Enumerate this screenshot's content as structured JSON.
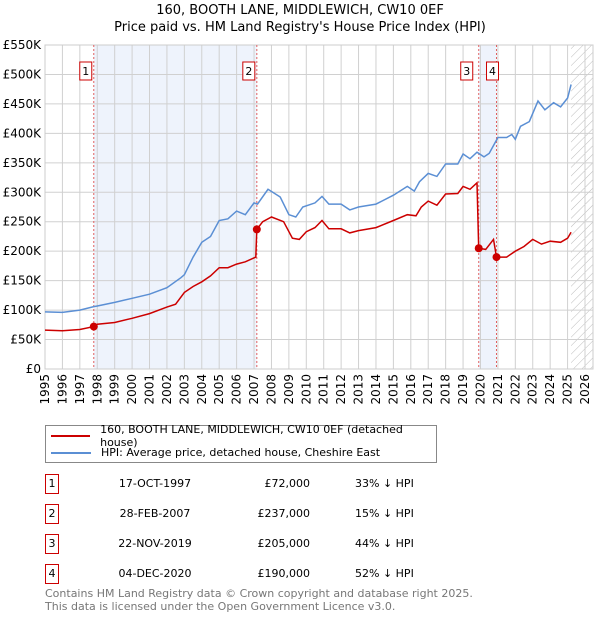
{
  "chart_data": {
    "type": "line",
    "title": "160, BOOTH LANE, MIDDLEWICH, CW10 0EF",
    "subtitle": "Price paid vs. HM Land Registry's House Price Index (HPI)",
    "xlim": [
      1995,
      2026
    ],
    "ylim": [
      0,
      550000
    ],
    "x_ticks": [
      "1995",
      "1996",
      "1997",
      "1998",
      "1999",
      "2000",
      "2001",
      "2002",
      "2003",
      "2004",
      "2005",
      "2006",
      "2007",
      "2008",
      "2009",
      "2010",
      "2011",
      "2012",
      "2013",
      "2014",
      "2015",
      "2016",
      "2017",
      "2018",
      "2019",
      "2020",
      "2021",
      "2022",
      "2023",
      "2024",
      "2025",
      "2026"
    ],
    "y_ticks": [
      {
        "v": 0,
        "label": "£0"
      },
      {
        "v": 50000,
        "label": "£50K"
      },
      {
        "v": 100000,
        "label": "£100K"
      },
      {
        "v": 150000,
        "label": "£150K"
      },
      {
        "v": 200000,
        "label": "£200K"
      },
      {
        "v": 250000,
        "label": "£250K"
      },
      {
        "v": 300000,
        "label": "£300K"
      },
      {
        "v": 350000,
        "label": "£350K"
      },
      {
        "v": 400000,
        "label": "£400K"
      },
      {
        "v": 450000,
        "label": "£450K"
      },
      {
        "v": 500000,
        "label": "£500K"
      },
      {
        "v": 550000,
        "label": "£550K"
      }
    ],
    "grid": true,
    "shaded_periods": [
      [
        1997.8,
        2007.16
      ],
      [
        2019.9,
        2020.92
      ]
    ],
    "forecast_hatch_from": 2025.2,
    "series": [
      {
        "name": "160, BOOTH LANE, MIDDLEWICH, CW10 0EF (detached house)",
        "color": "#cc0000",
        "x": [
          1995,
          1996,
          1997,
          1997.8,
          1998,
          1999,
          2000,
          2001,
          2002,
          2002.5,
          2003,
          2003.5,
          2004,
          2004.5,
          2005,
          2005.5,
          2006,
          2006.5,
          2007.1,
          2007.16,
          2007.5,
          2008,
          2008.7,
          2009.2,
          2009.6,
          2010,
          2010.5,
          2010.9,
          2011.3,
          2012,
          2012.5,
          2013,
          2014,
          2015,
          2015.8,
          2016.3,
          2016.6,
          2017,
          2017.5,
          2018,
          2018.7,
          2019,
          2019.4,
          2019.8,
          2019.9,
          2020.3,
          2020.75,
          2020.92,
          2021.5,
          2022,
          2022.5,
          2023,
          2023.5,
          2024,
          2024.6,
          2025,
          2025.2
        ],
        "y": [
          66000,
          65000,
          67000,
          72000,
          76000,
          79000,
          86000,
          94000,
          105000,
          110000,
          130000,
          140000,
          148000,
          158000,
          172000,
          172000,
          178000,
          182000,
          190000,
          237000,
          250000,
          258000,
          250000,
          222000,
          220000,
          233000,
          240000,
          252000,
          238000,
          238000,
          231000,
          235000,
          240000,
          252000,
          262000,
          260000,
          275000,
          285000,
          278000,
          297000,
          298000,
          310000,
          305000,
          316000,
          205000,
          203000,
          220000,
          190000,
          190000,
          200000,
          208000,
          220000,
          212000,
          217000,
          215000,
          222000,
          232000
        ]
      },
      {
        "name": "HPI: Average price, detached house, Cheshire East",
        "color": "#5b8fd4",
        "x": [
          1995,
          1996,
          1997,
          1997.8,
          1998,
          1999,
          2000,
          2001,
          2002,
          2002.8,
          2003,
          2003.5,
          2004,
          2004.5,
          2005,
          2005.5,
          2006,
          2006.5,
          2007,
          2007.2,
          2007.8,
          2008.5,
          2009,
          2009.4,
          2009.8,
          2010.5,
          2010.9,
          2011.3,
          2012,
          2012.5,
          2013,
          2014,
          2015,
          2015.8,
          2016.2,
          2016.5,
          2017,
          2017.5,
          2018,
          2018.7,
          2019,
          2019.4,
          2019.8,
          2020.2,
          2020.5,
          2021,
          2021.5,
          2021.8,
          2022,
          2022.3,
          2022.8,
          2023.3,
          2023.7,
          2024.2,
          2024.6,
          2025,
          2025.2
        ],
        "y": [
          97000,
          96000,
          100000,
          106000,
          107000,
          113000,
          120000,
          127000,
          138000,
          155000,
          160000,
          190000,
          215000,
          225000,
          252000,
          255000,
          268000,
          262000,
          282000,
          280000,
          305000,
          292000,
          262000,
          258000,
          275000,
          282000,
          293000,
          280000,
          280000,
          270000,
          275000,
          280000,
          295000,
          310000,
          302000,
          318000,
          332000,
          327000,
          348000,
          348000,
          365000,
          357000,
          368000,
          360000,
          366000,
          393000,
          393000,
          398000,
          390000,
          412000,
          420000,
          455000,
          440000,
          452000,
          445000,
          460000,
          483000
        ]
      }
    ],
    "sales": [
      {
        "n": "1",
        "x": 1997.8,
        "y": 72000
      },
      {
        "n": "2",
        "x": 2007.16,
        "y": 237000
      },
      {
        "n": "3",
        "x": 2019.9,
        "y": 205000
      },
      {
        "n": "4",
        "x": 2020.92,
        "y": 190000
      }
    ]
  },
  "header": {
    "title": "160, BOOTH LANE, MIDDLEWICH, CW10 0EF",
    "subtitle": "Price paid vs. HM Land Registry's House Price Index (HPI)"
  },
  "legend": {
    "property": "160, BOOTH LANE, MIDDLEWICH, CW10 0EF (detached house)",
    "hpi": "HPI: Average price, detached house, Cheshire East"
  },
  "transactions": [
    {
      "n": "1",
      "date": "17-OCT-1997",
      "price": "£72,000",
      "hpi": "33% ↓ HPI"
    },
    {
      "n": "2",
      "date": "28-FEB-2007",
      "price": "£237,000",
      "hpi": "15% ↓ HPI"
    },
    {
      "n": "3",
      "date": "22-NOV-2019",
      "price": "£205,000",
      "hpi": "44% ↓ HPI"
    },
    {
      "n": "4",
      "date": "04-DEC-2020",
      "price": "£190,000",
      "hpi": "52% ↓ HPI"
    }
  ],
  "footer": {
    "line1": "Contains HM Land Registry data © Crown copyright and database right 2025.",
    "line2": "This data is licensed under the Open Government Licence v3.0."
  }
}
